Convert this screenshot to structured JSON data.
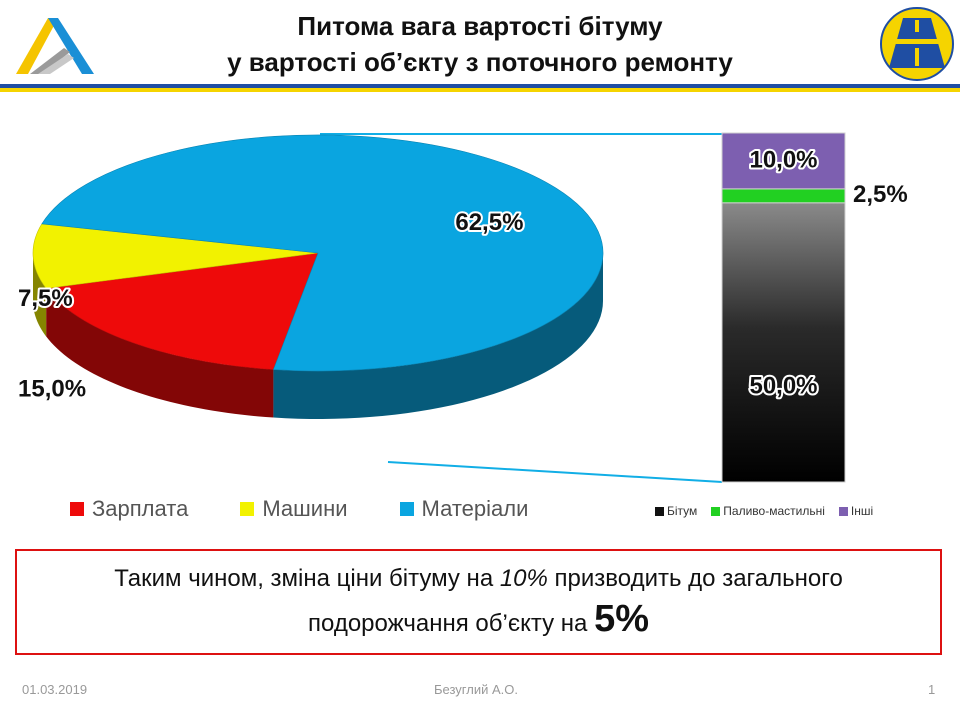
{
  "title": {
    "line1": "Питома вага вартості бітуму",
    "line2": "у вартості об’єкту з поточного ремонту"
  },
  "colors": {
    "accent_blue": "#1f4ea3",
    "accent_yellow": "#f5d400",
    "materials": "#0aa5e0",
    "salary": "#ee0a0a",
    "machines": "#f2f200",
    "bitumen": "#111111",
    "fuel": "#22d022",
    "other": "#7d5fb0"
  },
  "chart_data": [
    {
      "type": "pie",
      "slices": [
        {
          "name": "Зарплата",
          "value": 15.0,
          "label": "15,0%"
        },
        {
          "name": "Машини",
          "value": 7.5,
          "label": "7,5%"
        },
        {
          "name": "Матеріали",
          "value": 62.5,
          "label": "62,5%"
        }
      ]
    },
    {
      "type": "bar",
      "stacked": true,
      "series": [
        {
          "name": "Бітум",
          "value": 50.0,
          "label": "50,0%"
        },
        {
          "name": "Паливо-мастильні",
          "value": 2.5,
          "label": "2,5%"
        },
        {
          "name": "Інші",
          "value": 10.0,
          "label": "10,0%"
        }
      ]
    }
  ],
  "legend": {
    "main": [
      "Зарплата",
      "Машини",
      "Матеріали"
    ],
    "sub": [
      "Бітум",
      "Паливо-мастильні",
      "Інші"
    ]
  },
  "callout": {
    "part1": "Таким чином, зміна ціни бітуму на ",
    "italic": "10%",
    "part2": " призводить до загального",
    "line2": "подорожчання об’єкту на ",
    "big": "5%"
  },
  "footer": {
    "date": "01.03.2019",
    "author": "Безуглий А.О.",
    "page": "1"
  }
}
